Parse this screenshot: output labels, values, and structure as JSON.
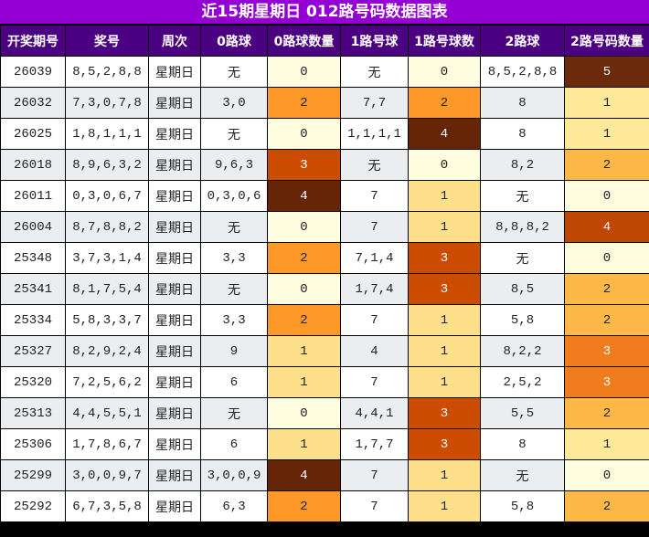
{
  "title": "近15期星期日 012路号码数据图表",
  "columns": [
    "开奖期号",
    "奖号",
    "周次",
    "0路球",
    "0路球数量",
    "1路号球",
    "1路号球数",
    "2路球",
    "2路号码数量"
  ],
  "heat_scales": {
    "count_0_1": {
      "0": "#FFFDE0",
      "1": "#FEE08B",
      "2": "#FE9929",
      "3": "#CC4C02",
      "4": "#662506"
    },
    "count_2": {
      "0": "#FFFDE0",
      "1": "#FEE89A",
      "2": "#FEB847",
      "3": "#F07C1E",
      "4": "#BE4704",
      "5": "#6B2A0A"
    }
  },
  "stripe_colors": {
    "odd": "#FFFFFF",
    "even": "#EBEEF1"
  },
  "header_colors": {
    "title_bg": "#9400D3",
    "header_bg": "#4B0082"
  },
  "chart_data": {
    "type": "table",
    "title": "近15期星期日 012路号码数据图表",
    "columns": [
      "开奖期号",
      "奖号",
      "周次",
      "0路球",
      "0路球数量",
      "1路号球",
      "1路号球数",
      "2路球",
      "2路号码数量"
    ],
    "rows": [
      [
        "26039",
        "8,5,2,8,8",
        "星期日",
        "无",
        "0",
        "无",
        "0",
        "8,5,2,8,8",
        "5"
      ],
      [
        "26032",
        "7,3,0,7,8",
        "星期日",
        "3,0",
        "2",
        "7,7",
        "2",
        "8",
        "1"
      ],
      [
        "26025",
        "1,8,1,1,1",
        "星期日",
        "无",
        "0",
        "1,1,1,1",
        "4",
        "8",
        "1"
      ],
      [
        "26018",
        "8,9,6,3,2",
        "星期日",
        "9,6,3",
        "3",
        "无",
        "0",
        "8,2",
        "2"
      ],
      [
        "26011",
        "0,3,0,6,7",
        "星期日",
        "0,3,0,6",
        "4",
        "7",
        "1",
        "无",
        "0"
      ],
      [
        "26004",
        "8,7,8,8,2",
        "星期日",
        "无",
        "0",
        "7",
        "1",
        "8,8,8,2",
        "4"
      ],
      [
        "25348",
        "3,7,3,1,4",
        "星期日",
        "3,3",
        "2",
        "7,1,4",
        "3",
        "无",
        "0"
      ],
      [
        "25341",
        "8,1,7,5,4",
        "星期日",
        "无",
        "0",
        "1,7,4",
        "3",
        "8,5",
        "2"
      ],
      [
        "25334",
        "5,8,3,3,7",
        "星期日",
        "3,3",
        "2",
        "7",
        "1",
        "5,8",
        "2"
      ],
      [
        "25327",
        "8,2,9,2,4",
        "星期日",
        "9",
        "1",
        "4",
        "1",
        "8,2,2",
        "3"
      ],
      [
        "25320",
        "7,2,5,6,2",
        "星期日",
        "6",
        "1",
        "7",
        "1",
        "2,5,2",
        "3"
      ],
      [
        "25313",
        "4,4,5,5,1",
        "星期日",
        "无",
        "0",
        "4,4,1",
        "3",
        "5,5",
        "2"
      ],
      [
        "25306",
        "1,7,8,6,7",
        "星期日",
        "6",
        "1",
        "1,7,7",
        "3",
        "8",
        "1"
      ],
      [
        "25299",
        "3,0,0,9,7",
        "星期日",
        "3,0,0,9",
        "4",
        "7",
        "1",
        "无",
        "0"
      ],
      [
        "25292",
        "6,7,3,5,8",
        "星期日",
        "6,3",
        "2",
        "7",
        "1",
        "5,8",
        "2"
      ]
    ],
    "series": [
      {
        "name": "0路球数量",
        "values": [
          0,
          2,
          0,
          3,
          4,
          0,
          2,
          0,
          2,
          1,
          1,
          0,
          1,
          4,
          2
        ]
      },
      {
        "name": "1路号球数",
        "values": [
          0,
          2,
          4,
          0,
          1,
          1,
          3,
          3,
          1,
          1,
          1,
          3,
          3,
          1,
          1
        ]
      },
      {
        "name": "2路号码数量",
        "values": [
          5,
          1,
          1,
          2,
          0,
          4,
          0,
          2,
          2,
          3,
          3,
          2,
          1,
          0,
          2
        ]
      }
    ]
  }
}
